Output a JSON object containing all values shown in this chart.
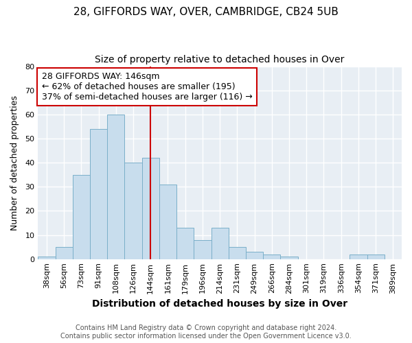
{
  "title": "28, GIFFORDS WAY, OVER, CAMBRIDGE, CB24 5UB",
  "subtitle": "Size of property relative to detached houses in Over",
  "xlabel": "Distribution of detached houses by size in Over",
  "ylabel": "Number of detached properties",
  "bar_color": "#c8dded",
  "bar_edge_color": "#7aafc9",
  "bins": [
    "38sqm",
    "56sqm",
    "73sqm",
    "91sqm",
    "108sqm",
    "126sqm",
    "144sqm",
    "161sqm",
    "179sqm",
    "196sqm",
    "214sqm",
    "231sqm",
    "249sqm",
    "266sqm",
    "284sqm",
    "301sqm",
    "319sqm",
    "336sqm",
    "354sqm",
    "371sqm",
    "389sqm"
  ],
  "values": [
    1,
    5,
    35,
    54,
    60,
    40,
    42,
    31,
    13,
    8,
    13,
    5,
    3,
    2,
    1,
    0,
    0,
    0,
    2,
    2,
    0
  ],
  "vline_idx": 6,
  "vline_color": "#cc0000",
  "annotation_line1": "28 GIFFORDS WAY: 146sqm",
  "annotation_line2": "← 62% of detached houses are smaller (195)",
  "annotation_line3": "37% of semi-detached houses are larger (116) →",
  "annotation_box_color": "#ffffff",
  "annotation_box_edge": "#cc0000",
  "ylim": [
    0,
    80
  ],
  "yticks": [
    0,
    10,
    20,
    30,
    40,
    50,
    60,
    70,
    80
  ],
  "footer1": "Contains HM Land Registry data © Crown copyright and database right 2024.",
  "footer2": "Contains public sector information licensed under the Open Government Licence v3.0.",
  "background_color": "#ffffff",
  "plot_bg_color": "#e8eef4",
  "grid_color": "#ffffff",
  "title_fontsize": 11,
  "subtitle_fontsize": 10,
  "xlabel_fontsize": 10,
  "ylabel_fontsize": 9,
  "tick_fontsize": 8,
  "annotation_fontsize": 9,
  "footer_fontsize": 7
}
